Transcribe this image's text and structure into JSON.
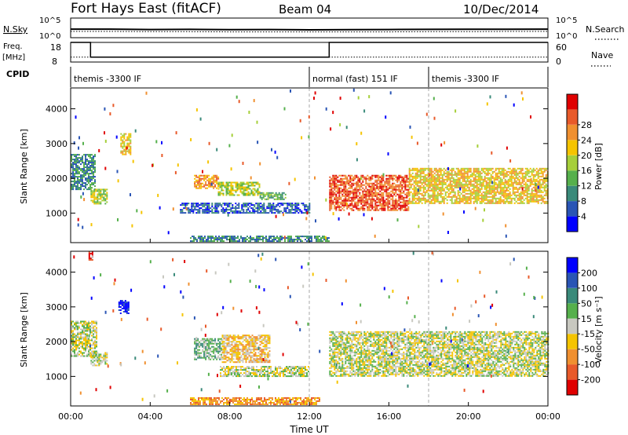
{
  "header": {
    "title": "Fort Hays East (fitACF)",
    "beam": "Beam 04",
    "date": "10/Dec/2014"
  },
  "nsky_panel": {
    "label": "N.Sky",
    "left_ticks": [
      "10^5",
      "10^0"
    ],
    "right_ticks": [
      "10^5",
      "10^0"
    ],
    "right_label": "N.Search"
  },
  "freq_panel": {
    "label_line1": "Freq.",
    "label_line2": "[MHz]",
    "left_ticks": [
      "18",
      "8"
    ],
    "right_ticks": [
      "60",
      "0"
    ],
    "right_label": "Nave"
  },
  "cpid_panel": {
    "label": "CPID",
    "modes": [
      "themis -3300 IF",
      "normal (fast) 151 IF",
      "themis -3300 IF"
    ],
    "mode_start_hours": [
      0,
      12,
      18
    ]
  },
  "time_axis": {
    "tick_labels": [
      "00:00",
      "04:00",
      "08:00",
      "12:00",
      "16:00",
      "20:00",
      "00:00"
    ],
    "tick_hours": [
      0,
      4,
      8,
      12,
      16,
      20,
      24
    ],
    "title": "Time UT"
  },
  "power_panel": {
    "ylabel": "Slant Range [km]",
    "yticks": [
      1000,
      2000,
      3000,
      4000
    ],
    "ylim": [
      150,
      4600
    ],
    "colorbar_label": "Power [dB]",
    "colorbar_ticks": [
      "4",
      "8",
      "12",
      "16",
      "20",
      "24",
      "28"
    ],
    "colors": [
      "#0000ff",
      "#2a55b5",
      "#3a8a7a",
      "#56b04c",
      "#a6cf3a",
      "#f5c400",
      "#f09030",
      "#e85a2a",
      "#e00000"
    ]
  },
  "velocity_panel": {
    "ylabel": "Slant Range [km]",
    "yticks": [
      1000,
      2000,
      3000,
      4000
    ],
    "ylim": [
      150,
      4600
    ],
    "colorbar_label": "Velocity [m s⁻¹]",
    "colorbar_ticks": [
      "200",
      "100",
      "50",
      "15",
      "-15",
      "-50",
      "-100",
      "-200"
    ],
    "colors": [
      "#0000ff",
      "#2a55b5",
      "#3a8a7a",
      "#56b04c",
      "#c8c8c0",
      "#f5c400",
      "#f09030",
      "#e85a2a",
      "#e00000"
    ]
  },
  "chart_data": [
    {
      "type": "line",
      "title": "N.Sky / N.Search",
      "x_range_hours": [
        0,
        24
      ],
      "y_scale": "log",
      "ylim": [
        1,
        100000
      ],
      "series": [
        {
          "name": "N.Sky",
          "x": [
            0,
            2,
            4,
            6,
            8,
            10,
            12,
            14,
            16,
            18,
            20,
            22,
            24
          ],
          "y": [
            150,
            150,
            120,
            130,
            110,
            120,
            100,
            110,
            120,
            130,
            140,
            140,
            150
          ]
        },
        {
          "name": "N.Search",
          "x": [
            0,
            2,
            4,
            6,
            8,
            10,
            12,
            14,
            16,
            18,
            20,
            22,
            24
          ],
          "y": [
            40,
            40,
            35,
            35,
            30,
            30,
            30,
            30,
            30,
            35,
            35,
            40,
            40
          ]
        }
      ]
    },
    {
      "type": "line",
      "title": "Freq. / Nave",
      "x_range_hours": [
        0,
        24
      ],
      "ylim": [
        8,
        18
      ],
      "series": [
        {
          "name": "Freq.",
          "x": [
            0,
            1,
            1,
            13,
            13,
            24
          ],
          "y": [
            18,
            18,
            10.5,
            10.5,
            18,
            18
          ]
        },
        {
          "name": "Nave",
          "x": [
            0,
            24
          ],
          "y": [
            15,
            15
          ]
        }
      ]
    },
    {
      "type": "heatmap",
      "title": "Power [dB]",
      "x_range_hours": [
        0,
        24
      ],
      "ylim": [
        150,
        4600
      ],
      "regions": [
        {
          "t0": 0.0,
          "t1": 1.2,
          "r0": 1700,
          "r1": 2700,
          "level": 2
        },
        {
          "t0": 1.0,
          "t1": 1.8,
          "r0": 1250,
          "r1": 1700,
          "level": 4
        },
        {
          "t0": 2.5,
          "t1": 3.0,
          "r0": 2700,
          "r1": 3300,
          "level": 5
        },
        {
          "t0": 6.2,
          "t1": 7.4,
          "r0": 1700,
          "r1": 2100,
          "level": 6
        },
        {
          "t0": 7.4,
          "t1": 9.5,
          "r0": 1500,
          "r1": 1900,
          "level": 4
        },
        {
          "t0": 9.5,
          "t1": 10.8,
          "r0": 1400,
          "r1": 1600,
          "level": 3
        },
        {
          "t0": 5.5,
          "t1": 12.0,
          "r0": 1000,
          "r1": 1300,
          "level": 1
        },
        {
          "t0": 13.0,
          "t1": 17.0,
          "r0": 1100,
          "r1": 2100,
          "level": 7
        },
        {
          "t0": 17.0,
          "t1": 24.0,
          "r0": 1300,
          "r1": 2300,
          "level": 5
        },
        {
          "t0": 6.0,
          "t1": 13.0,
          "r0": 180,
          "r1": 350,
          "level": 2
        }
      ]
    },
    {
      "type": "heatmap",
      "title": "Velocity [m s⁻¹]",
      "x_range_hours": [
        0,
        24
      ],
      "ylim": [
        150,
        4600
      ],
      "regions": [
        {
          "t0": 0.9,
          "t1": 1.1,
          "r0": 4350,
          "r1": 4600,
          "level": 8
        },
        {
          "t0": 2.4,
          "t1": 2.9,
          "r0": 2800,
          "r1": 3200,
          "level": 0
        },
        {
          "t0": 0.0,
          "t1": 1.3,
          "r0": 1600,
          "r1": 2600,
          "level": 4
        },
        {
          "t0": 1.0,
          "t1": 1.8,
          "r0": 1300,
          "r1": 1700,
          "level": 4
        },
        {
          "t0": 6.2,
          "t1": 7.6,
          "r0": 1500,
          "r1": 2100,
          "level": 3
        },
        {
          "t0": 7.6,
          "t1": 10.0,
          "r0": 1400,
          "r1": 2200,
          "level": 5
        },
        {
          "t0": 7.5,
          "t1": 12.0,
          "r0": 1000,
          "r1": 1300,
          "level": 4
        },
        {
          "t0": 13.0,
          "t1": 24.0,
          "r0": 1000,
          "r1": 2300,
          "level": 4
        },
        {
          "t0": 6.0,
          "t1": 12.5,
          "r0": 180,
          "r1": 400,
          "level": 6
        }
      ]
    }
  ]
}
